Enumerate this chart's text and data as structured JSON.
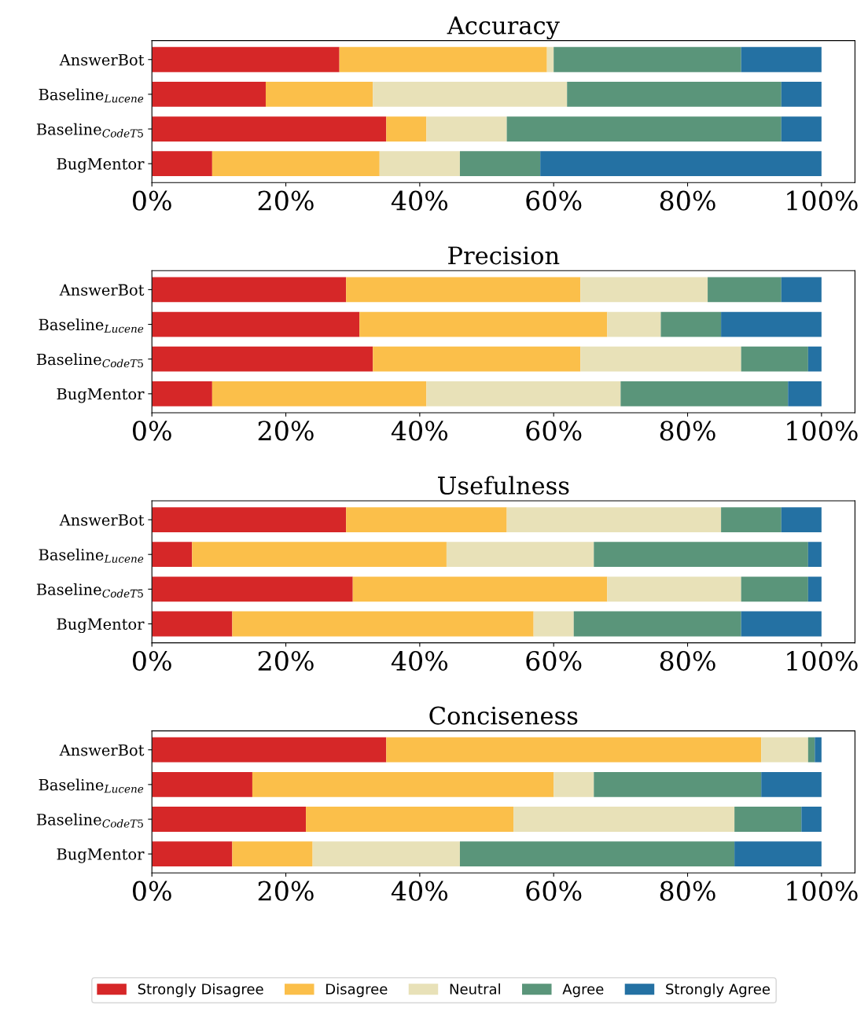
{
  "chart_data": [
    {
      "type": "bar",
      "orientation": "horizontal",
      "stacked": true,
      "title": "Accuracy",
      "categories": [
        "AnswerBot",
        "Baseline$_{Lucene}$",
        "Baseline$_{CodeT5}$",
        "BugMentor"
      ],
      "xlim": [
        0,
        105
      ],
      "xticks": [
        {
          "value": 0,
          "label": "0%"
        },
        {
          "value": 20,
          "label": "20%"
        },
        {
          "value": 40,
          "label": "40%"
        },
        {
          "value": 60,
          "label": "60%"
        },
        {
          "value": 80,
          "label": "80%"
        },
        {
          "value": 100,
          "label": "100%"
        }
      ],
      "grid": false,
      "legend": false,
      "series": [
        {
          "color": "#d62728",
          "values": [
            28,
            17,
            35,
            9
          ]
        },
        {
          "color": "#fbbf4a",
          "values": [
            31,
            16,
            6,
            25
          ]
        },
        {
          "color": "#e8e1b8",
          "values": [
            1,
            29,
            12,
            12
          ]
        },
        {
          "color": "#5a957a",
          "values": [
            28,
            32,
            41,
            12
          ]
        },
        {
          "color": "#2471a3",
          "values": [
            12,
            6,
            6,
            42
          ]
        }
      ]
    },
    {
      "type": "bar",
      "orientation": "horizontal",
      "stacked": true,
      "title": "Precision",
      "categories": [
        "AnswerBot",
        "Baseline$_{Lucene}$",
        "Baseline$_{CodeT5}$",
        "BugMentor"
      ],
      "xlim": [
        0,
        105
      ],
      "xticks": [
        {
          "value": 0,
          "label": "0%"
        },
        {
          "value": 20,
          "label": "20%"
        },
        {
          "value": 40,
          "label": "40%"
        },
        {
          "value": 60,
          "label": "60%"
        },
        {
          "value": 80,
          "label": "80%"
        },
        {
          "value": 100,
          "label": "100%"
        }
      ],
      "grid": false,
      "legend": false,
      "series": [
        {
          "color": "#d62728",
          "values": [
            29,
            31,
            33,
            9
          ]
        },
        {
          "color": "#fbbf4a",
          "values": [
            35,
            37,
            31,
            32
          ]
        },
        {
          "color": "#e8e1b8",
          "values": [
            19,
            8,
            24,
            29
          ]
        },
        {
          "color": "#5a957a",
          "values": [
            11,
            9,
            10,
            25
          ]
        },
        {
          "color": "#2471a3",
          "values": [
            6,
            15,
            2,
            5
          ]
        }
      ]
    },
    {
      "type": "bar",
      "orientation": "horizontal",
      "stacked": true,
      "title": "Usefulness",
      "categories": [
        "AnswerBot",
        "Baseline$_{Lucene}$",
        "Baseline$_{CodeT5}$",
        "BugMentor"
      ],
      "xlim": [
        0,
        105
      ],
      "xticks": [
        {
          "value": 0,
          "label": "0%"
        },
        {
          "value": 20,
          "label": "20%"
        },
        {
          "value": 40,
          "label": "40%"
        },
        {
          "value": 60,
          "label": "60%"
        },
        {
          "value": 80,
          "label": "80%"
        },
        {
          "value": 100,
          "label": "100%"
        }
      ],
      "grid": false,
      "legend": false,
      "series": [
        {
          "color": "#d62728",
          "values": [
            29,
            6,
            30,
            12
          ]
        },
        {
          "color": "#fbbf4a",
          "values": [
            24,
            38,
            38,
            45
          ]
        },
        {
          "color": "#e8e1b8",
          "values": [
            32,
            22,
            20,
            6
          ]
        },
        {
          "color": "#5a957a",
          "values": [
            9,
            32,
            10,
            25
          ]
        },
        {
          "color": "#2471a3",
          "values": [
            6,
            2,
            2,
            12
          ]
        }
      ]
    },
    {
      "type": "bar",
      "orientation": "horizontal",
      "stacked": true,
      "title": "Conciseness",
      "categories": [
        "AnswerBot",
        "Baseline$_{Lucene}$",
        "Baseline$_{CodeT5}$",
        "BugMentor"
      ],
      "xlim": [
        0,
        105
      ],
      "xticks": [
        {
          "value": 0,
          "label": "0%"
        },
        {
          "value": 20,
          "label": "20%"
        },
        {
          "value": 40,
          "label": "40%"
        },
        {
          "value": 60,
          "label": "60%"
        },
        {
          "value": 80,
          "label": "80%"
        },
        {
          "value": 100,
          "label": "100%"
        }
      ],
      "grid": false,
      "legend": "bottom",
      "series": [
        {
          "name": "Strongly Disagree",
          "color": "#d62728",
          "values": [
            35,
            15,
            23,
            12
          ]
        },
        {
          "name": "Disagree",
          "color": "#fbbf4a",
          "values": [
            56,
            45,
            31,
            12
          ]
        },
        {
          "name": "Neutral",
          "color": "#e8e1b8",
          "values": [
            7,
            6,
            33,
            22
          ]
        },
        {
          "name": "Agree",
          "color": "#5a957a",
          "values": [
            1,
            25,
            10,
            41
          ]
        },
        {
          "name": "Strongly Agree",
          "color": "#2471a3",
          "values": [
            1,
            9,
            3,
            13
          ]
        }
      ]
    }
  ]
}
